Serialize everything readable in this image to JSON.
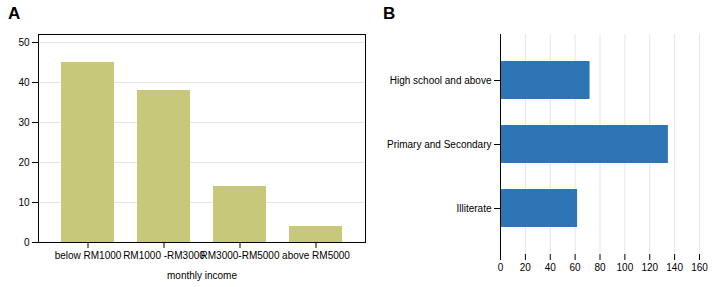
{
  "chart_data": [
    {
      "type": "bar",
      "title": "A",
      "categories": [
        "below RM1000",
        "RM1000 -RM3000",
        "RM3000-RM5000",
        "above RM5000"
      ],
      "values": [
        45,
        38,
        14,
        4
      ],
      "color": "#C8C87A",
      "xlabel": "monthly income",
      "ylim": [
        0,
        52
      ],
      "yticks": [
        0,
        10,
        20,
        30,
        40,
        50
      ],
      "grid": true
    },
    {
      "type": "bar",
      "title": "B",
      "orientation": "horizontal",
      "categories": [
        "High school and above",
        "Primary and Secondary",
        "Illiterate"
      ],
      "values": [
        72,
        135,
        62
      ],
      "color": "#2E75B6",
      "xlim": [
        0,
        160
      ],
      "xticks": [
        0,
        20,
        40,
        60,
        80,
        100,
        120,
        140,
        160
      ],
      "grid": true
    }
  ]
}
